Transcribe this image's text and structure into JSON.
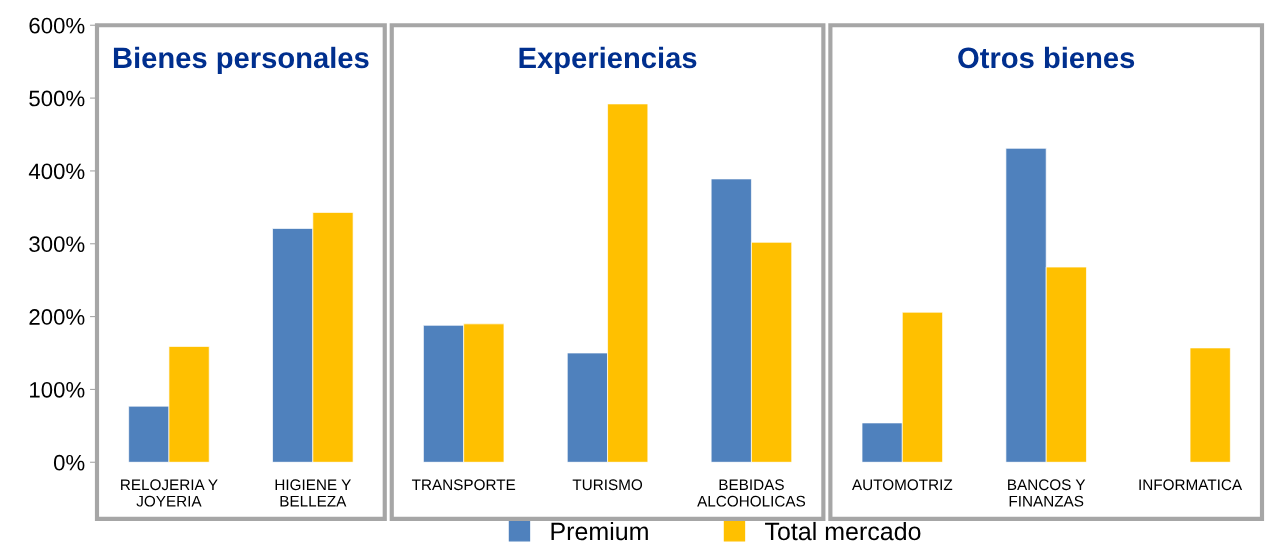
{
  "chart_data": [
    {
      "type": "bar",
      "title": "Bienes personales",
      "categories": [
        "RELOJERIA Y\nJOYERIA",
        "HIGIENE Y\nBELLEZA"
      ],
      "series": [
        {
          "color": "#4f81bd",
          "values": [
            77,
            321
          ]
        },
        {
          "color": "#ffc000",
          "values": [
            159,
            343
          ]
        }
      ],
      "ylim": [
        0,
        600
      ],
      "yticks": [
        {
          "value": 0,
          "label": "0%"
        },
        {
          "value": 100,
          "label": "100%"
        },
        {
          "value": 200,
          "label": "200%"
        },
        {
          "value": 300,
          "label": "300%"
        },
        {
          "value": 400,
          "label": "400%"
        },
        {
          "value": 500,
          "label": "500%"
        },
        {
          "value": 600,
          "label": "600%"
        }
      ],
      "grid": false
    },
    {
      "type": "bar",
      "title": "Experiencias",
      "categories": [
        "TRANSPORTE",
        "TURISMO",
        "BEBIDAS\nALCOHOLICAS"
      ],
      "series": [
        {
          "name": "Premium",
          "color": "#4f81bd",
          "values": [
            188,
            150,
            389
          ]
        },
        {
          "name": "Total mercado",
          "color": "#ffc000",
          "values": [
            190,
            492,
            302
          ]
        }
      ],
      "ylim": [
        0,
        600
      ],
      "tick_labels": "x",
      "grid": false,
      "legend": "bottom"
    },
    {
      "type": "bar",
      "title": "Otros bienes",
      "categories": [
        "AUTOMOTRIZ",
        "BANCOS Y\nFINANZAS",
        "INFORMATICA"
      ],
      "series": [
        {
          "color": "#4f81bd",
          "values": [
            54,
            431,
            null
          ]
        },
        {
          "color": "#ffc000",
          "values": [
            206,
            268,
            157
          ]
        }
      ],
      "ylim": [
        0,
        600
      ],
      "tick_labels": "x",
      "grid": false
    }
  ]
}
